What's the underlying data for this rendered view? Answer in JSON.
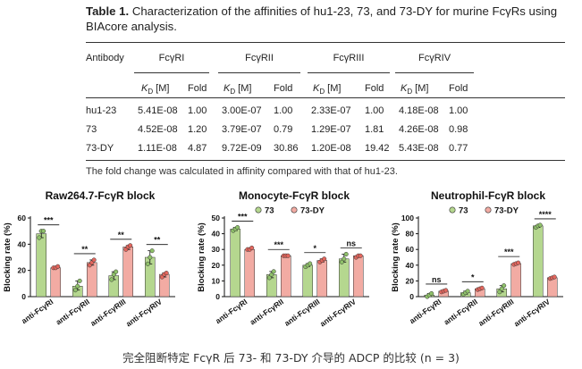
{
  "table": {
    "title_prefix": "Table 1.",
    "title_text": "Characterization of the affinities of hu1-23, 73, and 73-DY for murine FcγRs using BIAcore analysis.",
    "col_antibody": "Antibody",
    "receptors": [
      "FcγRI",
      "FcγRII",
      "FcγRIII",
      "FcγRIV"
    ],
    "sub_kd": "K",
    "sub_kd_sub": "D",
    "sub_kd_unit": " [M]",
    "sub_fold": "Fold",
    "rows": [
      {
        "name": "hu1-23",
        "values": [
          "5.41E-08",
          "1.00",
          "3.00E-07",
          "1.00",
          "2.33E-07",
          "1.00",
          "4.18E-08",
          "1.00"
        ]
      },
      {
        "name": "73",
        "values": [
          "4.52E-08",
          "1.20",
          "3.79E-07",
          "0.79",
          "1.29E-07",
          "1.81",
          "4.26E-08",
          "0.98"
        ]
      },
      {
        "name": "73-DY",
        "values": [
          "1.11E-08",
          "4.87",
          "9.72E-09",
          "30.86",
          "1.20E-08",
          "19.42",
          "5.43E-08",
          "0.77"
        ]
      }
    ],
    "footnote": "The fold change was calculated in affinity compared with that of hu1-23."
  },
  "caption": "完全阻断特定 FcγR 后 73- 和 73-DY 介导的 ADCP 的比较 (n = 3)",
  "chart_data": [
    {
      "type": "bar",
      "title": "Raw264.7-FcγR block",
      "ylabel": "Blocking rate (%)",
      "ylim": [
        0,
        60
      ],
      "yticks": [
        "0",
        "20",
        "40",
        "60"
      ],
      "categories": [
        "anti-FcγRI",
        "anti-FcγRII",
        "anti-FcγRIII",
        "anti-FcγRIV"
      ],
      "series": [
        {
          "name": "73",
          "values": [
            48,
            8,
            16,
            30
          ],
          "points": [
            [
              45,
              50,
              50
            ],
            [
              5,
              8,
              12
            ],
            [
              13,
              17,
              19
            ],
            [
              25,
              30,
              35
            ]
          ]
        },
        {
          "name": "73-DY",
          "values": [
            22,
            26,
            38,
            17
          ],
          "points": [
            [
              22,
              22,
              23
            ],
            [
              24,
              26,
              28
            ],
            [
              36,
              38,
              39
            ],
            [
              15,
              17,
              18
            ]
          ]
        }
      ],
      "significance": [
        "***",
        "**",
        "**",
        "**"
      ],
      "legend": false
    },
    {
      "type": "bar",
      "title": "Monocyte-FcγR block",
      "ylabel": "Blocking rate (%)",
      "ylim": [
        0,
        50
      ],
      "yticks": [
        "0",
        "10",
        "20",
        "30",
        "40",
        "50"
      ],
      "categories": [
        "anti-FcγRI",
        "anti-FcγRII",
        "anti-FcγRIII",
        "anti-FcγRIV"
      ],
      "series": [
        {
          "name": "73",
          "values": [
            43,
            14,
            20,
            24
          ],
          "points": [
            [
              42,
              43,
              44
            ],
            [
              12,
              14,
              16
            ],
            [
              19,
              20,
              21
            ],
            [
              22,
              24,
              27
            ]
          ]
        },
        {
          "name": "73-DY",
          "values": [
            30,
            26,
            23,
            26
          ],
          "points": [
            [
              30,
              30,
              31
            ],
            [
              26,
              26,
              26
            ],
            [
              22,
              23,
              24
            ],
            [
              25,
              26,
              26
            ]
          ]
        }
      ],
      "significance": [
        "***",
        "***",
        "*",
        "ns"
      ],
      "legend": true
    },
    {
      "type": "bar",
      "title": "Neutrophil-FcγR block",
      "ylabel": "Blocking rate (%)",
      "ylim": [
        0,
        100
      ],
      "yticks": [
        "0",
        "20",
        "40",
        "60",
        "80",
        "100"
      ],
      "categories": [
        "anti-FcγRI",
        "anti-FcγRII",
        "anti-FcγRIII",
        "anti-FcγRIV"
      ],
      "series": [
        {
          "name": "73",
          "values": [
            2,
            5,
            10,
            90
          ],
          "points": [
            [
              0,
              2,
              4
            ],
            [
              3,
              5,
              7
            ],
            [
              6,
              10,
              14
            ],
            [
              88,
              90,
              91
            ]
          ]
        },
        {
          "name": "73-DY",
          "values": [
            7,
            10,
            42,
            24
          ],
          "points": [
            [
              6,
              7,
              8
            ],
            [
              9,
              10,
              11
            ],
            [
              41,
              42,
              43
            ],
            [
              23,
              24,
              25
            ]
          ]
        }
      ],
      "significance": [
        "ns",
        "*",
        "***",
        "****"
      ],
      "legend": true
    }
  ],
  "colors": {
    "s73": "#b5d78f",
    "s73dy": "#f2aba3",
    "stroke": "#333333"
  }
}
